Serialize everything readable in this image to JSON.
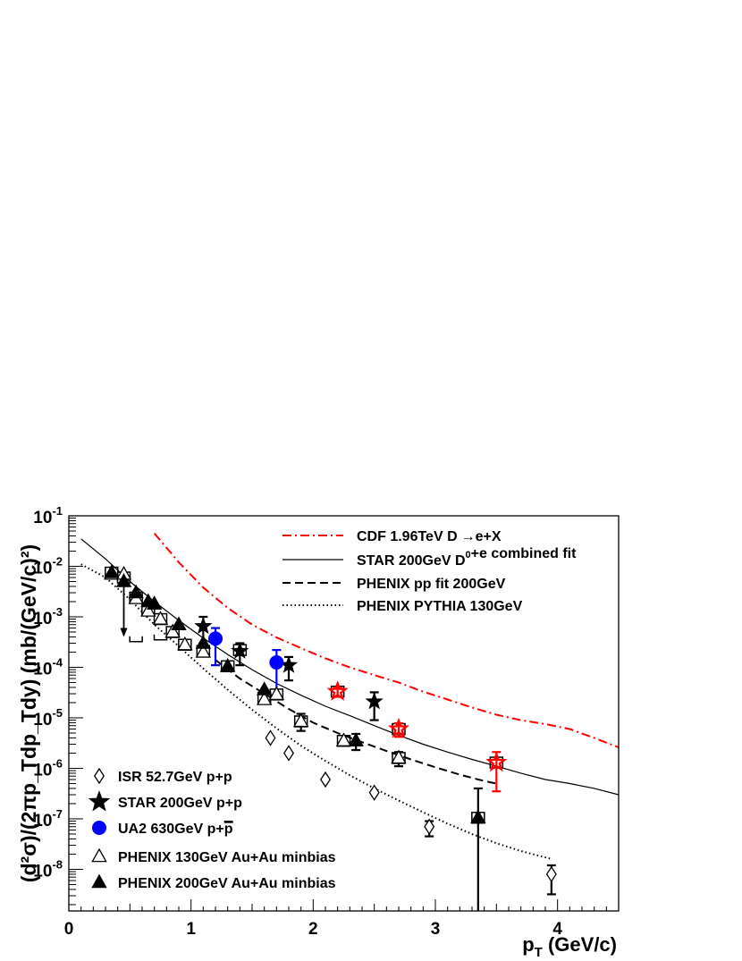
{
  "chart_data": {
    "type": "scatter",
    "xlabel": "p",
    "xlabel_sub": "T",
    "xlabel_unit": "(GeV/c)",
    "ylabel": "(d²σ)/(2πp_Tdp_Tdy) (mb/(GeV/c)²)",
    "xlim": [
      0,
      4.5
    ],
    "ylim": [
      1.5e-09,
      0.1
    ],
    "yscale": "log",
    "x_ticks": [
      "0",
      "1",
      "2",
      "3",
      "4"
    ],
    "y_ticks": [
      {
        "base": "10",
        "exp": "-1"
      },
      {
        "base": "10",
        "exp": "-2"
      },
      {
        "base": "10",
        "exp": "-3"
      },
      {
        "base": "10",
        "exp": "-4"
      },
      {
        "base": "10",
        "exp": "-5"
      },
      {
        "base": "10",
        "exp": "-6"
      },
      {
        "base": "10",
        "exp": "-7"
      },
      {
        "base": "10",
        "exp": "-8"
      }
    ],
    "curves": [
      {
        "name": "CDF 1.96TeV D→e+X",
        "label_main": "CDF 1.96TeV D",
        "label_arrow": "→",
        "label_tail": "e+X",
        "style": "dashdot",
        "color": "#ff0000",
        "x": [
          0.7,
          0.9,
          1.1,
          1.3,
          1.5,
          1.7,
          1.9,
          2.1,
          2.3,
          2.5,
          2.7,
          2.9,
          3.1,
          3.3,
          3.5,
          3.7,
          3.9,
          4.1,
          4.3,
          4.5
        ],
        "y": [
          0.045,
          0.012,
          0.0038,
          0.0015,
          0.0007,
          0.00039,
          0.00024,
          0.00015,
          0.0001,
          7e-05,
          5e-05,
          3.3e-05,
          2.3e-05,
          1.6e-05,
          1.15e-05,
          9e-06,
          7.5e-06,
          6e-06,
          4e-06,
          2.6e-06
        ]
      },
      {
        "name": "STAR 200GeV D⁰+e combined fit",
        "label_main": "STAR 200GeV D",
        "label_sup": "0",
        "label_tail": "+e combined fit",
        "style": "solid",
        "color": "#000000",
        "x": [
          0.1,
          0.3,
          0.5,
          0.7,
          0.9,
          1.1,
          1.3,
          1.5,
          1.7,
          1.9,
          2.1,
          2.3,
          2.5,
          2.7,
          2.9,
          3.1,
          3.3,
          3.5,
          3.7,
          3.9,
          4.1,
          4.3,
          4.5
        ],
        "y": [
          0.035,
          0.014,
          0.005,
          0.002,
          0.00085,
          0.00038,
          0.00018,
          9e-05,
          4.8e-05,
          2.8e-05,
          1.7e-05,
          1.1e-05,
          7e-06,
          4.5e-06,
          3e-06,
          2.1e-06,
          1.5e-06,
          1.1e-06,
          8e-07,
          6e-07,
          5e-07,
          4e-07,
          3e-07
        ]
      },
      {
        "name": "PHENIX pp fit 200GeV",
        "style": "dashed",
        "color": "#000000",
        "x": [
          1.2,
          1.4,
          1.6,
          1.8,
          2.0,
          2.2,
          2.4,
          2.6,
          2.8,
          3.0,
          3.2,
          3.4,
          3.5
        ],
        "y": [
          0.00014,
          6e-05,
          3e-05,
          1.5e-05,
          8e-06,
          5e-06,
          3.3e-06,
          2.2e-06,
          1.5e-06,
          1.05e-06,
          7.5e-07,
          5.6e-07,
          5e-07
        ]
      },
      {
        "name": "PHENIX PYTHIA 130GeV",
        "style": "dotted",
        "color": "#000000",
        "x": [
          0.1,
          0.3,
          0.5,
          0.7,
          0.9,
          1.1,
          1.3,
          1.5,
          1.7,
          1.9,
          2.1,
          2.3,
          2.5,
          2.7,
          2.9,
          3.1,
          3.3,
          3.5,
          3.7,
          3.95
        ],
        "y": [
          0.011,
          0.006,
          0.0022,
          0.0007,
          0.00026,
          9.5e-05,
          3.6e-05,
          1.45e-05,
          6.2e-06,
          2.8e-06,
          1.4e-06,
          7.3e-07,
          4e-07,
          2.3e-07,
          1.35e-07,
          8e-08,
          5e-08,
          3.3e-08,
          2.3e-08,
          1.6e-08
        ]
      }
    ],
    "series": [
      {
        "name": "ISR 52.7GeV p+p",
        "marker": "open-diamond",
        "color": "#000000",
        "points": [
          {
            "x": 1.65,
            "y": 4e-06
          },
          {
            "x": 1.8,
            "y": 2e-06
          },
          {
            "x": 2.1,
            "y": 6e-07
          },
          {
            "x": 2.5,
            "y": 3.3e-07
          },
          {
            "x": 2.95,
            "y": 7e-08,
            "ylo": 4.5e-08,
            "yhi": 9e-08
          },
          {
            "x": 3.95,
            "y": 8e-09,
            "ylo": 3.2e-09,
            "yhi": 1.2e-08
          }
        ]
      },
      {
        "name": "STAR 200GeV p+p",
        "marker": "filled-star",
        "color": "#000000",
        "points": [
          {
            "x": 1.1,
            "y": 0.00065,
            "ylo": 0.0003,
            "yhi": 0.001
          },
          {
            "x": 1.4,
            "y": 0.00021,
            "ylo": 0.00011,
            "yhi": 0.0003
          },
          {
            "x": 1.8,
            "y": 0.00011,
            "ylo": 5.5e-05,
            "yhi": 0.00016
          },
          {
            "x": 2.5,
            "y": 2.1e-05,
            "ylo": 9e-06,
            "yhi": 3.2e-05
          }
        ]
      },
      {
        "name": "STAR 200GeV p+p (red)",
        "marker": "open-star",
        "color": "#ff0000",
        "points": [
          {
            "x": 2.2,
            "y": 3.3e-05,
            "ylo": 2.6e-05,
            "yhi": 4e-05
          },
          {
            "x": 2.7,
            "y": 6e-06,
            "ylo": 4.2e-06,
            "yhi": 7.8e-06
          },
          {
            "x": 3.5,
            "y": 1.3e-06,
            "ylo": 3.5e-07,
            "yhi": 2.1e-06
          }
        ]
      },
      {
        "name": "UA2 630GeV p+p̄",
        "label_main": "UA2 630GeV p+",
        "label_bar": "p",
        "marker": "filled-circle",
        "color": "#0000ff",
        "points": [
          {
            "x": 1.2,
            "y": 0.00037,
            "ylo": 0.00011,
            "yhi": 0.0006
          },
          {
            "x": 1.7,
            "y": 0.000125,
            "ylo": 2.5e-05,
            "yhi": 0.00022
          }
        ]
      },
      {
        "name": "PHENIX 130GeV Au+Au minbias",
        "marker": "open-triangle",
        "color": "#000000",
        "points": [
          {
            "x": 0.35,
            "y": 0.007
          },
          {
            "x": 0.45,
            "y": 0.007
          },
          {
            "x": 0.55,
            "y": 0.0023
          },
          {
            "x": 0.65,
            "y": 0.0013
          },
          {
            "x": 0.75,
            "y": 0.0009
          },
          {
            "x": 0.85,
            "y": 0.0005
          },
          {
            "x": 0.95,
            "y": 0.00028
          },
          {
            "x": 1.1,
            "y": 0.0002
          },
          {
            "x": 1.6,
            "y": 2.3e-05
          },
          {
            "x": 1.7,
            "y": 2.9e-05
          },
          {
            "x": 1.9,
            "y": 8.5e-06,
            "ylo": 5.5e-06,
            "yhi": 1.2e-05
          },
          {
            "x": 2.25,
            "y": 3.5e-06
          },
          {
            "x": 2.7,
            "y": 1.6e-06,
            "ylo": 1.1e-06,
            "yhi": 2.1e-06
          }
        ]
      },
      {
        "name": "PHENIX 200GeV Au+Au minbias",
        "marker": "filled-triangle",
        "color": "#000000",
        "points": [
          {
            "x": 0.35,
            "y": 0.0075
          },
          {
            "x": 0.45,
            "y": 0.005,
            "upper_limit": true
          },
          {
            "x": 0.55,
            "y": 0.003
          },
          {
            "x": 0.65,
            "y": 0.002
          },
          {
            "x": 0.7,
            "y": 0.0018
          },
          {
            "x": 0.9,
            "y": 0.0007
          },
          {
            "x": 1.1,
            "y": 0.0003
          },
          {
            "x": 1.3,
            "y": 0.000105
          },
          {
            "x": 1.6,
            "y": 3.6e-05
          },
          {
            "x": 2.35,
            "y": 3.5e-06,
            "ylo": 2.3e-06,
            "yhi": 4.8e-06
          },
          {
            "x": 3.35,
            "y": 1.05e-07,
            "ylo": 1.5e-09,
            "yhi": 4e-07
          }
        ]
      }
    ],
    "systematic_boxes": [
      {
        "x": 0.35,
        "y": 0.0075
      },
      {
        "x": 0.45,
        "y": 0.006
      },
      {
        "x": 0.55,
        "y": 0.0024
      },
      {
        "x": 0.65,
        "y": 0.0014
      },
      {
        "x": 0.75,
        "y": 0.0009
      },
      {
        "x": 0.85,
        "y": 0.0005
      },
      {
        "x": 0.95,
        "y": 0.00028
      },
      {
        "x": 1.1,
        "y": 0.00021
      },
      {
        "x": 1.3,
        "y": 0.000105
      },
      {
        "x": 1.4,
        "y": 0.00022
      },
      {
        "x": 1.6,
        "y": 2.5e-05
      },
      {
        "x": 1.7,
        "y": 2.9e-05
      },
      {
        "x": 1.9,
        "y": 8.5e-06
      },
      {
        "x": 2.2,
        "y": 3.3e-05
      },
      {
        "x": 2.25,
        "y": 3.5e-06
      },
      {
        "x": 2.7,
        "y": 6e-06
      },
      {
        "x": 2.7,
        "y": 1.6e-06
      },
      {
        "x": 3.35,
        "y": 1.05e-07
      },
      {
        "x": 3.5,
        "y": 1.3e-06
      }
    ],
    "open_brackets": [
      {
        "x": 0.55,
        "y": 0.00035
      },
      {
        "x": 0.75,
        "y": 0.00038
      }
    ],
    "legend_curves_position": "top-right",
    "legend_markers_position": "bottom-left",
    "grid": false
  }
}
